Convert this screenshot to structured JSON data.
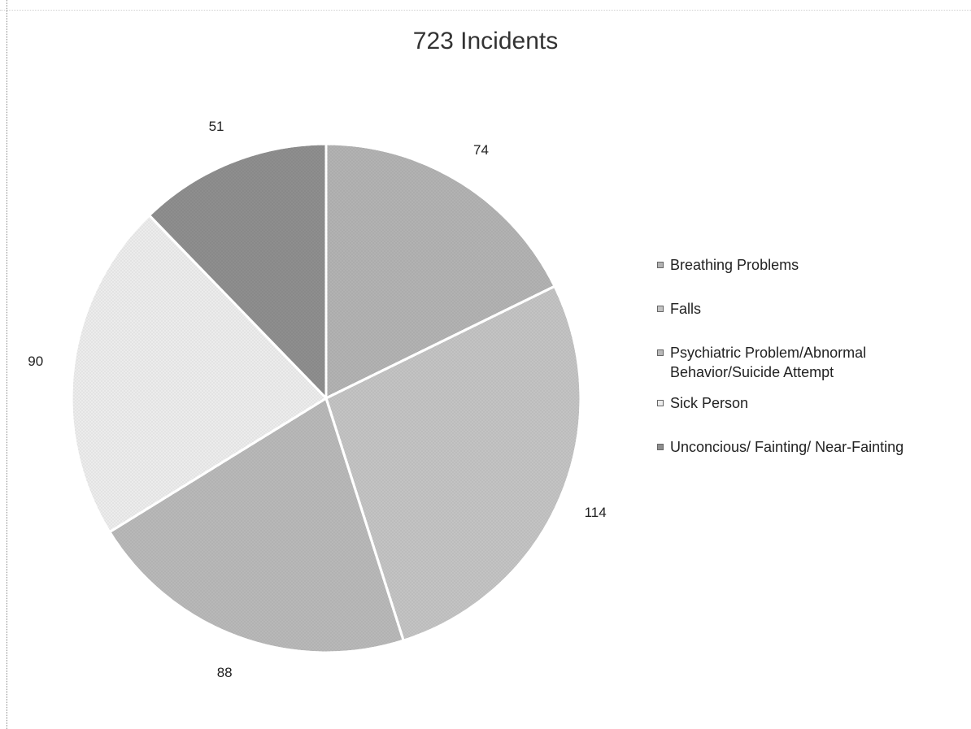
{
  "chart_data": {
    "type": "pie",
    "title": "723 Incidents",
    "categories": [
      "Breathing Problems",
      "Falls",
      "Psychiatric Problem/Abnormal Behavior/Suicide Attempt",
      "Sick Person",
      "Unconcious/ Fainting/ Near-Fainting"
    ],
    "slices": [
      {
        "value": 74,
        "label": "74",
        "category": "Breathing Problems",
        "color": "#b2b2b2"
      },
      {
        "value": 114,
        "label": "114",
        "category": "Falls",
        "color": "#c3c3c3"
      },
      {
        "value": 88,
        "label": "88",
        "category": "Psychiatric Problem/Abnormal Behavior/Suicide Attempt",
        "color": "#b8b8b8"
      },
      {
        "value": 90,
        "label": "90",
        "category": "Sick Person",
        "color": "#ececec"
      },
      {
        "value": 51,
        "label": "51",
        "category": "Unconcious/ Fainting/ Near-Fainting",
        "color": "#8e8e8e"
      }
    ],
    "legend_position": "right"
  }
}
